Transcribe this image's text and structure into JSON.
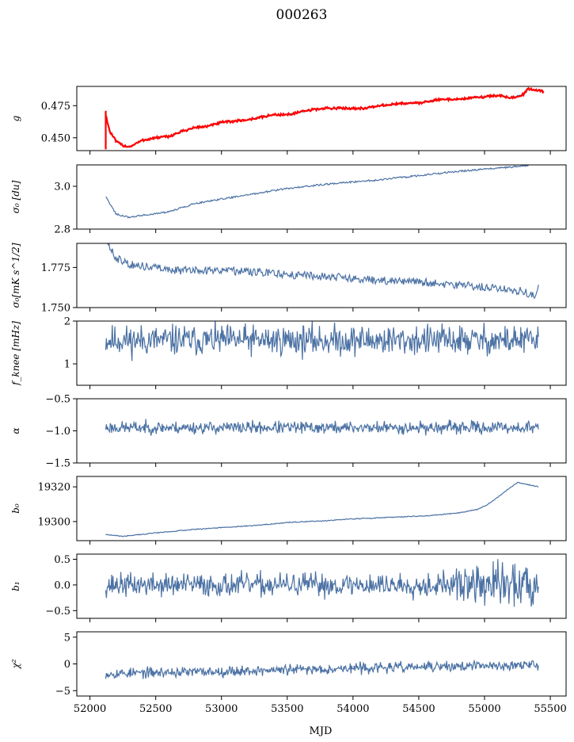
{
  "figure": {
    "title": "000263",
    "xlabel": "MJD",
    "x_ticks": [
      52000,
      52500,
      53000,
      53500,
      54000,
      54500,
      55000,
      55500
    ],
    "x_range": [
      51900,
      55620
    ]
  },
  "chart_data": [
    {
      "type": "line",
      "ylabel": "g",
      "ylim": [
        0.44,
        0.49
      ],
      "yticks": [
        0.45,
        0.475
      ],
      "tick_decimals": 3,
      "series": [
        {
          "color": "#4c72a4",
          "generator": "smooth",
          "points": [
            [
              52120,
              0.468
            ],
            [
              52150,
              0.455
            ],
            [
              52200,
              0.447
            ],
            [
              52250,
              0.444
            ],
            [
              52300,
              0.443
            ],
            [
              52400,
              0.448
            ],
            [
              52500,
              0.45
            ],
            [
              52600,
              0.451
            ],
            [
              52700,
              0.455
            ],
            [
              52800,
              0.458
            ],
            [
              52900,
              0.459
            ],
            [
              53000,
              0.462
            ],
            [
              53100,
              0.463
            ],
            [
              53200,
              0.464
            ],
            [
              53300,
              0.466
            ],
            [
              53400,
              0.468
            ],
            [
              53500,
              0.468
            ],
            [
              53600,
              0.47
            ],
            [
              53700,
              0.472
            ],
            [
              53800,
              0.473
            ],
            [
              53900,
              0.473
            ],
            [
              54000,
              0.473
            ],
            [
              54100,
              0.473
            ],
            [
              54200,
              0.475
            ],
            [
              54300,
              0.476
            ],
            [
              54400,
              0.477
            ],
            [
              54500,
              0.477
            ],
            [
              54600,
              0.479
            ],
            [
              54700,
              0.48
            ],
            [
              54800,
              0.48
            ],
            [
              54900,
              0.481
            ],
            [
              55000,
              0.482
            ],
            [
              55100,
              0.483
            ],
            [
              55200,
              0.481
            ],
            [
              55300,
              0.484
            ],
            [
              55330,
              0.488
            ],
            [
              55400,
              0.487
            ],
            [
              55450,
              0.486
            ]
          ],
          "noise": 0.0004
        },
        {
          "color": "#ff0000",
          "generator": "smooth",
          "points": [
            [
              52120,
              0.468
            ],
            [
              52150,
              0.455
            ],
            [
              52200,
              0.447
            ],
            [
              52250,
              0.444
            ],
            [
              52300,
              0.443
            ],
            [
              52400,
              0.448
            ],
            [
              52500,
              0.45
            ],
            [
              52600,
              0.451
            ],
            [
              52700,
              0.455
            ],
            [
              52800,
              0.458
            ],
            [
              52900,
              0.459
            ],
            [
              53000,
              0.462
            ],
            [
              53100,
              0.463
            ],
            [
              53200,
              0.464
            ],
            [
              53300,
              0.466
            ],
            [
              53400,
              0.468
            ],
            [
              53500,
              0.468
            ],
            [
              53600,
              0.47
            ],
            [
              53700,
              0.472
            ],
            [
              53800,
              0.473
            ],
            [
              53900,
              0.473
            ],
            [
              54000,
              0.473
            ],
            [
              54100,
              0.473
            ],
            [
              54200,
              0.475
            ],
            [
              54300,
              0.476
            ],
            [
              54400,
              0.477
            ],
            [
              54500,
              0.477
            ],
            [
              54600,
              0.479
            ],
            [
              54700,
              0.48
            ],
            [
              54800,
              0.48
            ],
            [
              54900,
              0.481
            ],
            [
              55000,
              0.482
            ],
            [
              55100,
              0.483
            ],
            [
              55200,
              0.481
            ],
            [
              55300,
              0.484
            ],
            [
              55330,
              0.488
            ],
            [
              55400,
              0.487
            ],
            [
              55450,
              0.486
            ]
          ],
          "noise": 0.0009,
          "spike": {
            "x": 52120,
            "y_range": [
              0.441,
              0.471
            ]
          }
        }
      ]
    },
    {
      "type": "line",
      "ylabel": "σ₀ [du]",
      "ylim": [
        2.8,
        3.1
      ],
      "yticks": [
        2.8,
        3.0
      ],
      "tick_decimals": 1,
      "series": [
        {
          "color": "#4c72a4",
          "generator": "smooth",
          "points": [
            [
              52120,
              2.95
            ],
            [
              52200,
              2.87
            ],
            [
              52300,
              2.855
            ],
            [
              52400,
              2.865
            ],
            [
              52600,
              2.88
            ],
            [
              52800,
              2.92
            ],
            [
              53000,
              2.94
            ],
            [
              53200,
              2.96
            ],
            [
              53500,
              2.99
            ],
            [
              53800,
              3.01
            ],
            [
              54000,
              3.02
            ],
            [
              54200,
              3.03
            ],
            [
              54500,
              3.05
            ],
            [
              54800,
              3.07
            ],
            [
              55000,
              3.08
            ],
            [
              55200,
              3.09
            ],
            [
              55300,
              3.095
            ],
            [
              55400,
              3.11
            ]
          ],
          "noise": 0.004
        }
      ]
    },
    {
      "type": "line",
      "ylabel": "σ₀[mK s^1/2]",
      "ylim": [
        1.75,
        1.79
      ],
      "yticks": [
        1.75,
        1.775
      ],
      "tick_decimals": 3,
      "series": [
        {
          "color": "#4c72a4",
          "generator": "smooth",
          "points": [
            [
              52120,
              1.79
            ],
            [
              52200,
              1.781
            ],
            [
              52300,
              1.777
            ],
            [
              52500,
              1.775
            ],
            [
              52700,
              1.773
            ],
            [
              53000,
              1.773
            ],
            [
              53300,
              1.772
            ],
            [
              53600,
              1.77
            ],
            [
              53900,
              1.769
            ],
            [
              54200,
              1.767
            ],
            [
              54500,
              1.766
            ],
            [
              54800,
              1.764
            ],
            [
              55100,
              1.762
            ],
            [
              55300,
              1.76
            ],
            [
              55380,
              1.757
            ],
            [
              55410,
              1.762
            ]
          ],
          "noise": 0.0025
        }
      ]
    },
    {
      "type": "line",
      "ylabel": "f_knee [mHz]",
      "ylim": [
        0.5,
        2.0
      ],
      "yticks": [
        1,
        2
      ],
      "tick_decimals": 0,
      "series": [
        {
          "color": "#4c72a4",
          "generator": "noise",
          "range": [
            52120,
            55410
          ],
          "mean": 1.55,
          "amp": 0.22,
          "seed": 11
        }
      ]
    },
    {
      "type": "line",
      "ylabel": "α",
      "ylim": [
        -1.5,
        -0.5
      ],
      "yticks": [
        -1.5,
        -1.0,
        -0.5
      ],
      "tick_decimals": 1,
      "series": [
        {
          "color": "#4c72a4",
          "generator": "noise",
          "range": [
            52120,
            55410
          ],
          "mean": -0.95,
          "amp": 0.06,
          "seed": 23
        }
      ]
    },
    {
      "type": "line",
      "ylabel": "b₀",
      "ylim": [
        19289,
        19326
      ],
      "yticks": [
        19300,
        19320
      ],
      "tick_decimals": 0,
      "series": [
        {
          "color": "#4c72a4",
          "generator": "smooth",
          "points": [
            [
              52120,
              19292.5
            ],
            [
              52250,
              19291.5
            ],
            [
              52500,
              19293.5
            ],
            [
              52800,
              19295.5
            ],
            [
              53000,
              19296.5
            ],
            [
              53300,
              19298
            ],
            [
              53500,
              19299.5
            ],
            [
              53800,
              19300.5
            ],
            [
              54000,
              19301.5
            ],
            [
              54300,
              19302.5
            ],
            [
              54600,
              19303.5
            ],
            [
              54800,
              19305
            ],
            [
              54950,
              19307
            ],
            [
              55050,
              19311
            ],
            [
              55150,
              19317
            ],
            [
              55250,
              19322.5
            ],
            [
              55320,
              19321.5
            ],
            [
              55410,
              19320
            ]
          ],
          "noise": 0.25
        }
      ]
    },
    {
      "type": "line",
      "ylabel": "b₁",
      "ylim": [
        -0.65,
        0.6
      ],
      "yticks": [
        -0.5,
        0.0,
        0.5
      ],
      "tick_decimals": 1,
      "series": [
        {
          "color": "#4c72a4",
          "generator": "noise",
          "range": [
            52120,
            55410
          ],
          "mean": 0.0,
          "amp": 0.14,
          "seed": 37,
          "envelope": [
            [
              52120,
              1.0
            ],
            [
              54600,
              1.0
            ],
            [
              54900,
              1.6
            ],
            [
              55100,
              2.0
            ],
            [
              55410,
              1.9
            ]
          ]
        }
      ]
    },
    {
      "type": "line",
      "ylabel": "χ²",
      "ylim": [
        -6,
        6
      ],
      "yticks": [
        -5,
        0,
        5
      ],
      "tick_decimals": 0,
      "series": [
        {
          "color": "#4c72a4",
          "generator": "noise",
          "range": [
            52120,
            55410
          ],
          "mean": -1.0,
          "amp": 0.6,
          "seed": 53,
          "trend": [
            [
              52120,
              -1.8
            ],
            [
              53000,
              -1.4
            ],
            [
              54000,
              -0.8
            ],
            [
              55410,
              -0.2
            ]
          ]
        }
      ]
    }
  ]
}
